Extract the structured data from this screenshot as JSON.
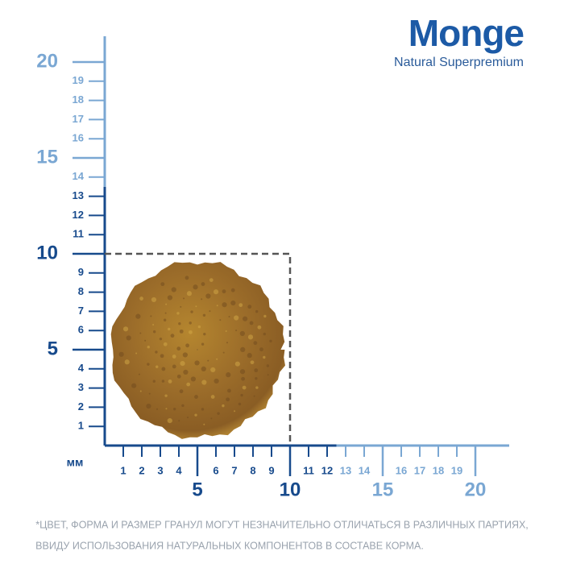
{
  "logo": {
    "brand": "Monge",
    "tagline": "Natural Superpremium"
  },
  "scale": {
    "unit": "мм",
    "x_minor": [
      1,
      2,
      3,
      4,
      6,
      7,
      8,
      9,
      11,
      12,
      13,
      14,
      16,
      17,
      18,
      19
    ],
    "x_major": [
      5,
      10,
      15,
      20
    ],
    "y_minor": [
      1,
      2,
      3,
      4,
      6,
      7,
      8,
      9,
      11,
      12,
      13,
      14,
      16,
      17,
      18,
      19
    ],
    "y_major": [
      5,
      10,
      15,
      20
    ],
    "dark_limit": 12.5
  },
  "note": [
    "*ЦВЕТ, ФОРМА И РАЗМЕР ГРАНУЛ МОГУТ НЕЗНАЧИТЕЛЬНО ОТЛИЧАТЬСЯ В РАЗЛИЧНЫХ ПАРТИЯХ,",
    "ВВИДУ ИСПОЛЬЗОВАНИЯ НАТУРАЛЬНЫХ КОМПОНЕНТОВ В СОСТАВЕ КОРМА."
  ]
}
